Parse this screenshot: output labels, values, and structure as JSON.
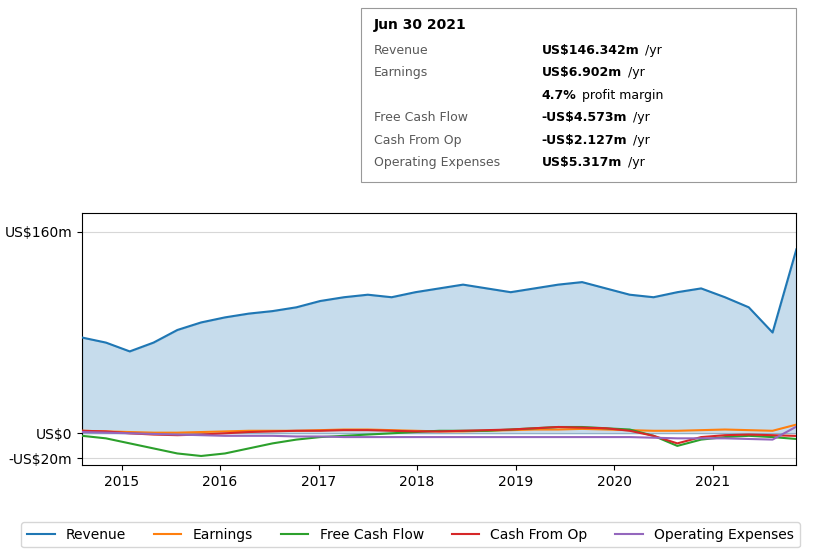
{
  "chart_data": {
    "type": "line",
    "title": "Jun 30 2021",
    "x": [
      2014.6,
      2014.841667,
      2015.083333,
      2015.325,
      2015.566667,
      2015.808333,
      2016.05,
      2016.291667,
      2016.533333,
      2016.775,
      2017.016667,
      2017.258333,
      2017.5,
      2017.741667,
      2017.983333,
      2018.225,
      2018.466667,
      2018.708333,
      2018.95,
      2019.191667,
      2019.433333,
      2019.675,
      2019.916667,
      2020.158333,
      2020.4,
      2020.641667,
      2020.883333,
      2021.125,
      2021.366667,
      2021.608333,
      2021.85
    ],
    "xlim": [
      2014.6,
      2021.85
    ],
    "xticks": [
      2015,
      2016,
      2017,
      2018,
      2019,
      2020,
      2021
    ],
    "ylim": [
      -25,
      175
    ],
    "yticks": [
      {
        "value": -20,
        "label": "-US$20m"
      },
      {
        "value": 0,
        "label": "US$0"
      },
      {
        "value": 160,
        "label": "US$160m"
      }
    ],
    "grid": true,
    "legend": "lower center",
    "series": [
      {
        "name": "Revenue",
        "type": "area",
        "values": [
          76,
          72,
          65,
          72,
          82,
          88,
          92,
          95,
          97,
          100,
          105,
          108,
          110,
          108,
          112,
          115,
          118,
          115,
          112,
          115,
          118,
          120,
          115,
          110,
          108,
          112,
          115,
          108,
          100,
          80,
          146
        ]
      },
      {
        "name": "Earnings",
        "values": [
          2,
          1.5,
          1,
          0.5,
          0.5,
          1,
          1.5,
          2,
          2,
          2,
          2.5,
          3,
          3,
          2.5,
          2,
          1.5,
          1.5,
          2,
          2.5,
          3,
          3,
          3.5,
          3,
          2.5,
          2,
          2,
          2.5,
          3,
          2.5,
          2,
          6.9
        ]
      },
      {
        "name": "Free Cash Flow",
        "values": [
          -2,
          -4,
          -8,
          -12,
          -16,
          -18,
          -16,
          -12,
          -8,
          -5,
          -3,
          -2,
          -1,
          0,
          1,
          2,
          2,
          2,
          3,
          4,
          5,
          5,
          4,
          3,
          -2,
          -10,
          -5,
          -3,
          -2,
          -3,
          -4.5
        ]
      },
      {
        "name": "Cash From Op",
        "values": [
          2,
          1.5,
          0,
          -1,
          -1.5,
          -1,
          0,
          1,
          1.5,
          2,
          2,
          2.5,
          2.5,
          2,
          1.5,
          1.5,
          2,
          2.5,
          3,
          4,
          5,
          4.5,
          4,
          2,
          -2,
          -8,
          -3,
          -1.5,
          -1,
          -1.5,
          -2.1
        ]
      },
      {
        "name": "Operating Expenses",
        "values": [
          1,
          0.5,
          0,
          -0.5,
          -1,
          -1.5,
          -2,
          -2,
          -2,
          -2.5,
          -2.5,
          -3,
          -3,
          -3,
          -3,
          -3,
          -3,
          -3,
          -3,
          -3,
          -3,
          -3,
          -3,
          -3,
          -3.5,
          -4,
          -4,
          -4,
          -4.5,
          -5,
          5.3
        ]
      }
    ],
    "annotations": [
      [
        "Revenue",
        "US$146.342m",
        "/yr"
      ],
      [
        "Earnings",
        "US$6.902m",
        "/yr"
      ],
      [
        "4.7%",
        "profit margin"
      ],
      [
        "Free Cash Flow",
        "-US$4.573m",
        "/yr"
      ],
      [
        "Cash From Op",
        "-US$2.127m",
        "/yr"
      ],
      [
        "Operating Expenses",
        "US$5.317m",
        "/yr"
      ]
    ]
  }
}
